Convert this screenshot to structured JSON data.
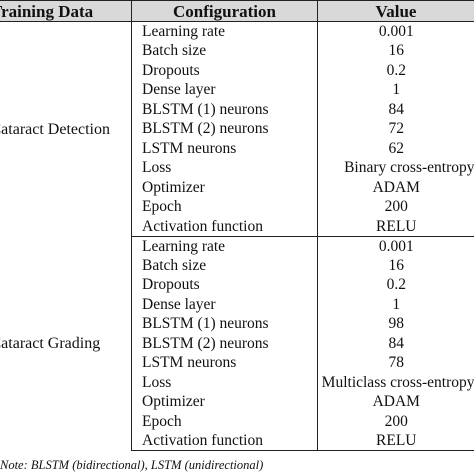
{
  "table": {
    "headers": [
      "Training Data",
      "Configuration",
      "Value"
    ],
    "groups": [
      {
        "name": "Cataract Detection",
        "rows": [
          {
            "config": "Learning rate",
            "value": "0.001"
          },
          {
            "config": "Batch size",
            "value": "16"
          },
          {
            "config": "Dropouts",
            "value": "0.2"
          },
          {
            "config": "Dense layer",
            "value": "1"
          },
          {
            "config": "BLSTM (1) neurons",
            "value": "84"
          },
          {
            "config": "BLSTM (2) neurons",
            "value": "72"
          },
          {
            "config": "LSTM neurons",
            "value": "62"
          },
          {
            "config": "Loss",
            "value": "Binary cross-entropy"
          },
          {
            "config": "Optimizer",
            "value": "ADAM"
          },
          {
            "config": "Epoch",
            "value": "200"
          },
          {
            "config": "Activation function",
            "value": "RELU"
          }
        ]
      },
      {
        "name": "Cataract Grading",
        "rows": [
          {
            "config": "Learning rate",
            "value": "0.001"
          },
          {
            "config": "Batch size",
            "value": "16"
          },
          {
            "config": "Dropouts",
            "value": "0.2"
          },
          {
            "config": "Dense layer",
            "value": "1"
          },
          {
            "config": "BLSTM (1) neurons",
            "value": "98"
          },
          {
            "config": "BLSTM (2) neurons",
            "value": "84"
          },
          {
            "config": "LSTM neurons",
            "value": "78"
          },
          {
            "config": "Loss",
            "value": "Multiclass cross-entropy"
          },
          {
            "config": "Optimizer",
            "value": "ADAM"
          },
          {
            "config": "Epoch",
            "value": "200"
          },
          {
            "config": "Activation function",
            "value": "RELU"
          }
        ]
      }
    ]
  },
  "footnote": "Note: BLSTM (bidirectional), LSTM (unidirectional)"
}
